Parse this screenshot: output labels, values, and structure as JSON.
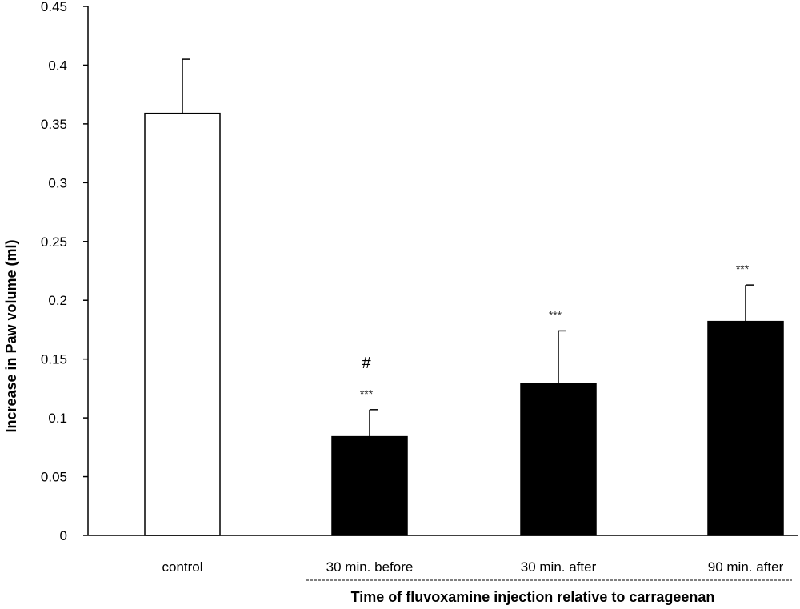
{
  "chart_data": {
    "type": "bar",
    "categories": [
      "control",
      "30 min. before",
      "30 min. after",
      "90 min. after"
    ],
    "values": [
      0.359,
      0.084,
      0.129,
      0.182
    ],
    "errors": [
      0.046,
      0.023,
      0.045,
      0.031
    ],
    "bar_fill_colors": [
      "#ffffff",
      "#000000",
      "#000000",
      "#000000"
    ],
    "bar_stroke_color": "#000000",
    "significance": [
      "",
      "***",
      "***",
      "***"
    ],
    "extra_marks": [
      "",
      "#",
      "",
      ""
    ],
    "ylabel": "Increase in Paw volume (ml)",
    "xlabel": "Time of fluvoxamine injection relative to carrageenan",
    "ylim": [
      0,
      0.45
    ],
    "yticks": [
      "0",
      "0.05",
      "0.1",
      "0.15",
      "0.2",
      "0.25",
      "0.3",
      "0.35",
      "0.4",
      "0.45"
    ],
    "grid": false,
    "xlabel_underline": "dashed"
  }
}
